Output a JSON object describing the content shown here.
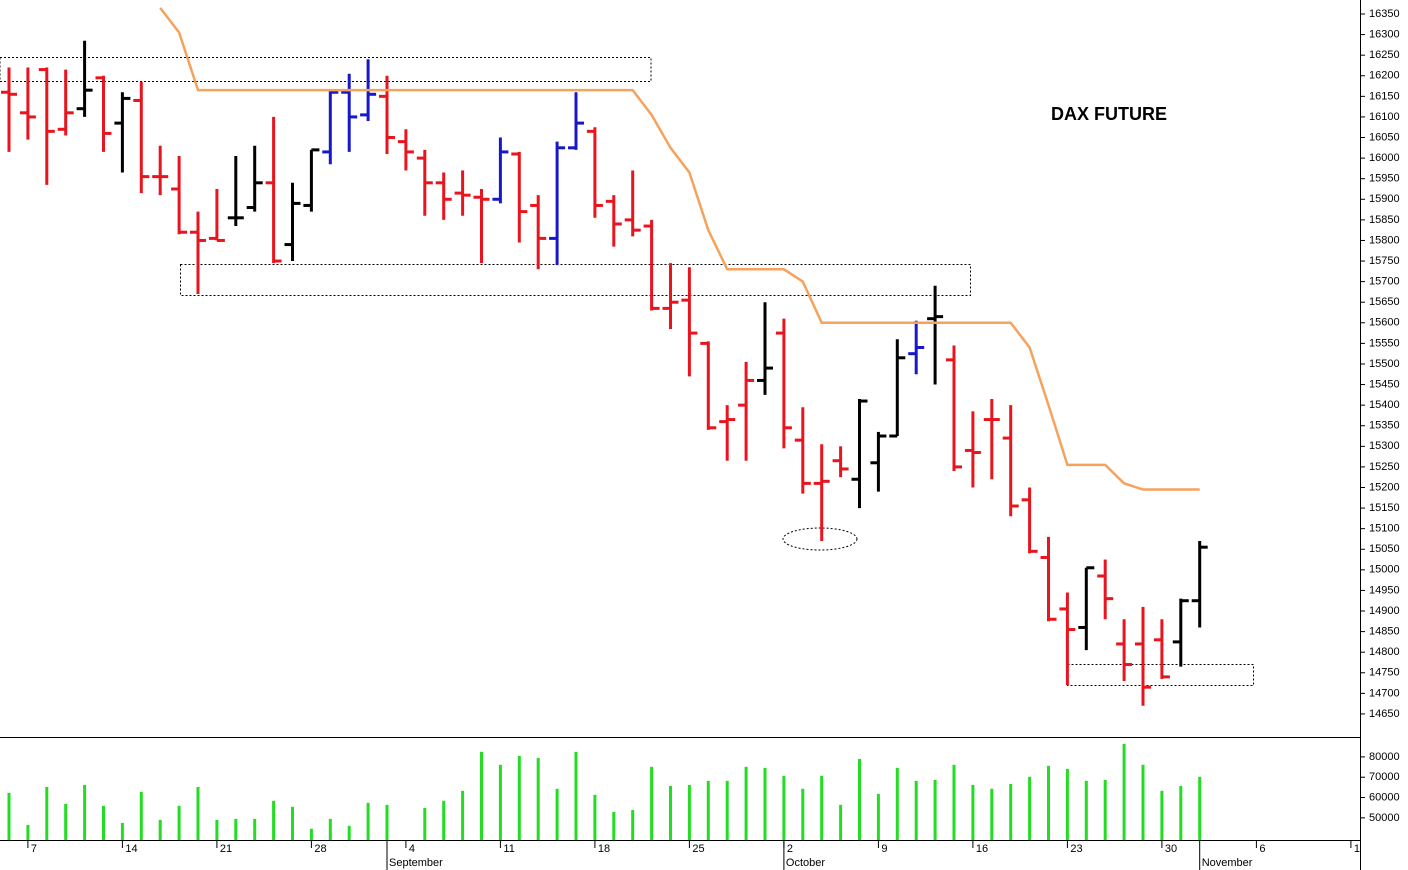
{
  "chart_data": {
    "type": "ohlc",
    "title": "DAX FUTURE",
    "categories": [
      null,
      "7",
      null,
      null,
      null,
      null,
      "14",
      null,
      null,
      null,
      null,
      "21",
      null,
      null,
      null,
      null,
      "28",
      null,
      null,
      null,
      null,
      "4",
      null,
      null,
      null,
      null,
      "11",
      null,
      null,
      null,
      null,
      "18",
      null,
      null,
      null,
      null,
      "25",
      null,
      null,
      null,
      null,
      "2",
      null,
      null,
      null,
      null,
      "9",
      null,
      null,
      null,
      null,
      "16",
      null,
      null,
      null,
      null,
      "23",
      null,
      null,
      null,
      null,
      "30",
      null,
      null,
      null,
      null,
      "6",
      null,
      null,
      null,
      null,
      "1"
    ],
    "months": [
      null,
      null,
      null,
      null,
      null,
      null,
      null,
      null,
      null,
      null,
      null,
      null,
      null,
      null,
      null,
      null,
      null,
      null,
      null,
      null,
      "September",
      null,
      null,
      null,
      null,
      null,
      null,
      null,
      null,
      null,
      null,
      null,
      null,
      null,
      null,
      null,
      null,
      null,
      null,
      null,
      null,
      "October",
      null,
      null,
      null,
      null,
      null,
      null,
      null,
      null,
      null,
      null,
      null,
      null,
      null,
      null,
      null,
      null,
      null,
      null,
      null,
      null,
      null,
      "November",
      null,
      null,
      null,
      null,
      null,
      null,
      null,
      null
    ],
    "open": [
      16160,
      16110,
      16215,
      16070,
      16120,
      16195,
      16085,
      16140,
      15955,
      15925,
      15820,
      15805,
      15855,
      15880,
      15940,
      15790,
      15885,
      16015,
      16160,
      16105,
      16150,
      16040,
      16000,
      15940,
      15915,
      15905,
      15900,
      16010,
      15885,
      15805,
      16025,
      16065,
      15895,
      15850,
      15835,
      15635,
      15655,
      15550,
      15360,
      15400,
      15460,
      15575,
      15315,
      15210,
      15265,
      15220,
      15260,
      15325,
      15525,
      15610,
      15510,
      15290,
      15365,
      15320,
      15170,
      15030,
      14905,
      14860,
      14985,
      14820,
      14820,
      14830,
      14825,
      14925,
      null,
      null,
      null,
      null,
      null,
      null,
      null,
      null
    ],
    "high": [
      16220,
      16220,
      16220,
      16215,
      16285,
      16200,
      16160,
      16185,
      16030,
      16005,
      15870,
      15925,
      16005,
      16030,
      16100,
      15940,
      16020,
      16165,
      16205,
      16240,
      16200,
      16070,
      16020,
      15965,
      15970,
      15925,
      16050,
      16015,
      15910,
      16040,
      16160,
      16075,
      15910,
      15970,
      15850,
      15745,
      15735,
      15555,
      15400,
      15505,
      15650,
      15610,
      15395,
      15305,
      15300,
      15415,
      15335,
      15560,
      15605,
      15690,
      15545,
      15385,
      15415,
      15400,
      15200,
      15080,
      14945,
      15005,
      15025,
      14880,
      14910,
      14880,
      14930,
      15070,
      null,
      null,
      null,
      null,
      null,
      null,
      null,
      null
    ],
    "low": [
      16015,
      16045,
      15935,
      16055,
      16100,
      16015,
      15965,
      15915,
      15910,
      15815,
      15670,
      15800,
      15835,
      15870,
      15745,
      15750,
      15870,
      15985,
      16015,
      16090,
      16010,
      15970,
      15860,
      15850,
      15860,
      15745,
      15890,
      15795,
      15730,
      15740,
      16020,
      15855,
      15785,
      15810,
      15630,
      15585,
      15470,
      15340,
      15265,
      15265,
      15425,
      15295,
      15185,
      15070,
      15225,
      15150,
      15190,
      15325,
      15475,
      15450,
      15240,
      15200,
      15220,
      15130,
      15040,
      14875,
      14720,
      14805,
      14880,
      14730,
      14670,
      14735,
      14765,
      14860,
      null,
      null,
      null,
      null,
      null,
      null,
      null,
      null
    ],
    "close": [
      16155,
      16100,
      16065,
      16110,
      16165,
      16060,
      16145,
      15955,
      15955,
      15820,
      15800,
      15800,
      15855,
      15940,
      15750,
      15890,
      16020,
      16160,
      16100,
      16155,
      16050,
      16015,
      15940,
      15900,
      15910,
      15900,
      16015,
      15870,
      15805,
      16025,
      16085,
      15885,
      15840,
      15825,
      15635,
      15650,
      15575,
      15345,
      15365,
      15460,
      15490,
      15345,
      15210,
      15215,
      15245,
      15410,
      15325,
      15515,
      15540,
      15615,
      15250,
      15285,
      15365,
      15155,
      15045,
      14880,
      14855,
      15005,
      14930,
      14770,
      14715,
      14740,
      14925,
      15055,
      null,
      null,
      null,
      null,
      null,
      null,
      null,
      null
    ],
    "colors": [
      "#e8141e",
      "#e8141e",
      "#e8141e",
      "#e8141e",
      "#000000",
      "#e8141e",
      "#000000",
      "#e8141e",
      "#e8141e",
      "#e8141e",
      "#e8141e",
      "#e8141e",
      "#000000",
      "#000000",
      "#e8141e",
      "#000000",
      "#000000",
      "#1818c8",
      "#1818c8",
      "#1818c8",
      "#e8141e",
      "#e8141e",
      "#e8141e",
      "#e8141e",
      "#e8141e",
      "#e8141e",
      "#1818c8",
      "#e8141e",
      "#e8141e",
      "#1818c8",
      "#1818c8",
      "#e8141e",
      "#e8141e",
      "#e8141e",
      "#e8141e",
      "#e8141e",
      "#e8141e",
      "#e8141e",
      "#e8141e",
      "#e8141e",
      "#000000",
      "#e8141e",
      "#e8141e",
      "#e8141e",
      "#e8141e",
      "#000000",
      "#000000",
      "#000000",
      "#1818c8",
      "#000000",
      "#e8141e",
      "#e8141e",
      "#e8141e",
      "#e8141e",
      "#e8141e",
      "#e8141e",
      "#e8141e",
      "#000000",
      "#e8141e",
      "#e8141e",
      "#e8141e",
      "#e8141e",
      "#000000",
      "#000000",
      null,
      null,
      null,
      null,
      null,
      null,
      null,
      null
    ],
    "line": {
      "color": "#f5a25d",
      "values": [
        null,
        null,
        null,
        null,
        null,
        null,
        null,
        null,
        16365,
        16305,
        16165,
        16165,
        16165,
        16165,
        16165,
        16165,
        16165,
        16165,
        16165,
        16165,
        16165,
        16165,
        16165,
        16165,
        16165,
        16165,
        16165,
        16165,
        16165,
        16165,
        16165,
        16165,
        16165,
        16165,
        16105,
        16025,
        15965,
        15825,
        15730,
        15730,
        15730,
        15730,
        15700,
        15600,
        15600,
        15600,
        15600,
        15600,
        15600,
        15600,
        15600,
        15600,
        15600,
        15600,
        15540,
        15400,
        15255,
        15255,
        15255,
        15210,
        15195,
        15195,
        15195,
        15195,
        null,
        null,
        null,
        null,
        null,
        null,
        null,
        null
      ]
    },
    "ylim": [
      14594,
      16384
    ],
    "yticks": [
      14650,
      14700,
      14750,
      14800,
      14850,
      14900,
      14950,
      15000,
      15050,
      15100,
      15150,
      15200,
      15250,
      15300,
      15350,
      15400,
      15450,
      15500,
      15550,
      15600,
      15650,
      15700,
      15750,
      15800,
      15850,
      15900,
      15950,
      16000,
      16050,
      16100,
      16150,
      16200,
      16250,
      16300,
      16350
    ],
    "volume": {
      "color": "#22dd22",
      "values": [
        62300,
        46500,
        65200,
        56900,
        66200,
        55900,
        47500,
        62800,
        49000,
        55900,
        65200,
        49000,
        49500,
        49500,
        58400,
        55400,
        44600,
        49500,
        46100,
        57400,
        56400,
        null,
        54900,
        58400,
        63300,
        82500,
        76100,
        80500,
        79500,
        64300,
        82500,
        61300,
        52900,
        53900,
        75100,
        65700,
        66200,
        68200,
        68200,
        75100,
        74600,
        70700,
        64300,
        70700,
        56400,
        79000,
        61800,
        74600,
        68200,
        68700,
        76100,
        66200,
        64300,
        66700,
        70200,
        75600,
        74100,
        68200,
        68700,
        86400,
        76100,
        63300,
        65700,
        70200,
        null,
        null,
        null,
        null,
        null,
        null,
        null,
        null
      ],
      "ylim": [
        39100,
        89300
      ],
      "yticks": [
        50000,
        60000,
        70000,
        80000
      ]
    }
  }
}
